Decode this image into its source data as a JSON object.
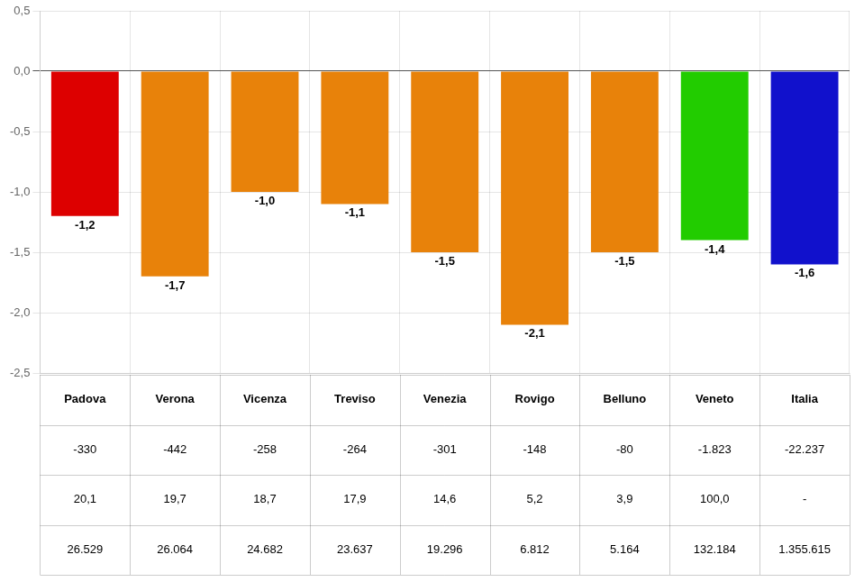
{
  "chart_data": {
    "type": "bar",
    "categories": [
      "Padova",
      "Verona",
      "Vicenza",
      "Treviso",
      "Venezia",
      "Rovigo",
      "Belluno",
      "Veneto",
      "Italia"
    ],
    "values": [
      -1.2,
      -1.7,
      -1.0,
      -1.1,
      -1.5,
      -2.1,
      -1.5,
      -1.4,
      -1.6
    ],
    "value_labels": [
      "-1,2",
      "-1,7",
      "-1,0",
      "-1,1",
      "-1,5",
      "-2,1",
      "-1,5",
      "-1,4",
      "-1,6"
    ],
    "data_labels": true,
    "colors": [
      "#dd0000",
      "#e8820a",
      "#e8820a",
      "#e8820a",
      "#e8820a",
      "#e8820a",
      "#e8820a",
      "#22cc00",
      "#1111cc"
    ],
    "ylim": [
      -2.5,
      0.5
    ],
    "yticks": [
      {
        "value": -2.5,
        "label": "-2,5"
      },
      {
        "value": -2.0,
        "label": "-2,0"
      },
      {
        "value": -1.5,
        "label": "-1,5"
      },
      {
        "value": -1.0,
        "label": "-1,0"
      },
      {
        "value": -0.5,
        "label": "-0,5"
      },
      {
        "value": 0.0,
        "label": "0,0"
      },
      {
        "value": 0.5,
        "label": "0,5"
      }
    ],
    "grid": true,
    "table": [
      [
        "-330",
        "-442",
        "-258",
        "-264",
        "-301",
        "-148",
        "-80",
        "-1.823",
        "-22.237"
      ],
      [
        "20,1",
        "19,7",
        "18,7",
        "17,9",
        "14,6",
        "5,2",
        "3,9",
        "100,0",
        "-"
      ],
      [
        "26.529",
        "26.064",
        "24.682",
        "23.637",
        "19.296",
        "6.812",
        "5.164",
        "132.184",
        "1.355.615"
      ]
    ]
  }
}
